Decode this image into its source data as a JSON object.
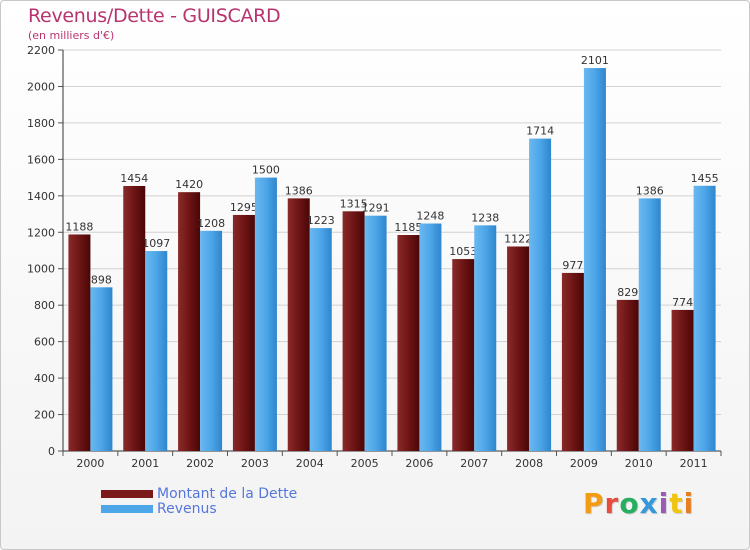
{
  "title": "Revenus/Dette - GUISCARD",
  "subtitle": "(en milliers d'€)",
  "colors": {
    "title": "#b8346e",
    "debt_series": "#7a1a1a",
    "revenue_series": "#4da6e8",
    "legend_text": "#5577dd"
  },
  "chart_data": {
    "type": "bar",
    "title": "Revenus/Dette - GUISCARD",
    "subtitle": "(en milliers d'€)",
    "xlabel": "",
    "ylabel": "",
    "ylim": [
      0,
      2200
    ],
    "yticks": [
      0,
      200,
      400,
      600,
      800,
      1000,
      1200,
      1400,
      1600,
      1800,
      2000,
      2200
    ],
    "grid": true,
    "legend_position": "bottom-left",
    "categories": [
      "2000",
      "2001",
      "2002",
      "2003",
      "2004",
      "2005",
      "2006",
      "2007",
      "2008",
      "2009",
      "2010",
      "2011"
    ],
    "series": [
      {
        "name": "Montant de la Dette",
        "color": "#7a1a1a",
        "values": [
          1188,
          1454,
          1420,
          1295,
          1386,
          1315,
          1185,
          1053,
          1122,
          977,
          829,
          774
        ],
        "labels": [
          "1188",
          "1454",
          "1420",
          "1295",
          "1386",
          "1315",
          "1185",
          "1053",
          "1122",
          "977",
          "829",
          "774"
        ]
      },
      {
        "name": "Revenus",
        "color": "#4da6e8",
        "values": [
          898,
          1097,
          1208,
          1500,
          1223,
          1291,
          1248,
          1238,
          1714,
          2101,
          1386,
          1455
        ],
        "labels": [
          "898",
          "1097",
          "1208",
          "1500",
          "1223",
          "1291",
          "1248",
          "1238",
          "1714",
          "2101",
          "1386",
          "1455"
        ]
      }
    ]
  },
  "legend": {
    "items": [
      {
        "label": "Montant de la Dette",
        "color": "#7a1a1a"
      },
      {
        "label": "Revenus",
        "color": "#4da6e8"
      }
    ]
  },
  "logo": {
    "text": "Proxiti",
    "letter_colors": [
      "#f39c12",
      "#e74c3c",
      "#27ae60",
      "#3498db",
      "#9b59b6",
      "#f1c40f",
      "#e67e22"
    ]
  }
}
